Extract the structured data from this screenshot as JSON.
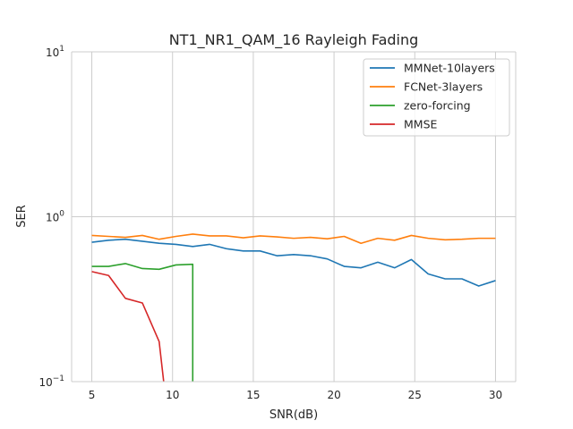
{
  "chart_data": {
    "type": "line",
    "title": "NT1_NR1_QAM_16 Rayleigh Fading",
    "xlabel": "SNR(dB)",
    "ylabel": "SER",
    "yscale": "log",
    "xlim": [
      3.75,
      31.25
    ],
    "ylim": [
      0.1,
      10
    ],
    "grid": true,
    "legend_position": "top-right",
    "x_ticks": [
      {
        "value": 5,
        "label": "5"
      },
      {
        "value": 10,
        "label": "10"
      },
      {
        "value": 15,
        "label": "15"
      },
      {
        "value": 20,
        "label": "20"
      },
      {
        "value": 25,
        "label": "25"
      },
      {
        "value": 30,
        "label": "30"
      }
    ],
    "y_ticks": [
      {
        "value": 0.1,
        "base": "10",
        "exp": "−1"
      },
      {
        "value": 1,
        "base": "10",
        "exp": "0"
      },
      {
        "value": 10,
        "base": "10",
        "exp": "1"
      }
    ],
    "series": [
      {
        "name": "MMNet-10layers",
        "color": "#1f77b4",
        "x": [
          5,
          6.04,
          7.08,
          8.13,
          9.17,
          10.21,
          11.25,
          12.29,
          13.33,
          14.38,
          15.42,
          16.46,
          17.5,
          18.54,
          19.58,
          20.63,
          21.67,
          22.71,
          23.75,
          24.79,
          25.83,
          26.88,
          27.92,
          28.96,
          30
        ],
        "y": [
          0.7,
          0.72,
          0.73,
          0.71,
          0.69,
          0.68,
          0.66,
          0.68,
          0.64,
          0.62,
          0.62,
          0.58,
          0.59,
          0.58,
          0.555,
          0.5,
          0.49,
          0.53,
          0.49,
          0.55,
          0.45,
          0.42,
          0.42,
          0.38,
          0.41
        ]
      },
      {
        "name": "FCNet-3layers",
        "color": "#ff7f0e",
        "x": [
          5,
          6.04,
          7.08,
          8.13,
          9.17,
          10.21,
          11.25,
          12.29,
          13.33,
          14.38,
          15.42,
          16.46,
          17.5,
          18.54,
          19.58,
          20.63,
          21.67,
          22.71,
          23.75,
          24.79,
          25.83,
          26.88,
          27.92,
          28.96,
          30
        ],
        "y": [
          0.77,
          0.76,
          0.75,
          0.77,
          0.73,
          0.76,
          0.785,
          0.765,
          0.765,
          0.745,
          0.765,
          0.755,
          0.74,
          0.75,
          0.735,
          0.76,
          0.69,
          0.74,
          0.72,
          0.77,
          0.74,
          0.725,
          0.73,
          0.74,
          0.74
        ]
      },
      {
        "name": "zero-forcing",
        "color": "#2ca02c",
        "x": [
          5,
          6.04,
          7.08,
          8.13,
          9.17,
          10.21,
          11.25,
          11.25
        ],
        "y": [
          0.5,
          0.5,
          0.52,
          0.485,
          0.48,
          0.51,
          0.515,
          0.05
        ]
      },
      {
        "name": "MMSE",
        "color": "#d62728",
        "x": [
          5,
          6.04,
          7.08,
          8.13,
          9.17,
          9.8
        ],
        "y": [
          0.465,
          0.44,
          0.32,
          0.3,
          0.175,
          0.05
        ]
      }
    ]
  }
}
